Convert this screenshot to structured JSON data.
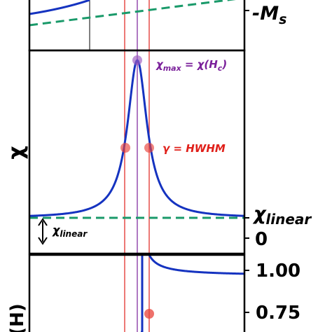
{
  "chart_data": [
    {
      "panel": "top",
      "type": "line",
      "right_label": "-Ms",
      "right_label_parts": {
        "main": "-M",
        "sub": "s"
      },
      "series": [
        {
          "name": "",
          "style": "solid",
          "color": "#1533c0"
        },
        {
          "name": "",
          "style": "dashed",
          "color": "#1a9a6a"
        }
      ]
    },
    {
      "panel": "middle",
      "type": "line",
      "ylabel": "χ",
      "right_ticks": [
        "χlinear",
        "0"
      ],
      "right_tick_parts": {
        "main": "χ",
        "sub": "linear"
      },
      "lorentzian": {
        "x0": 0,
        "gamma": 1,
        "peak": 1.0,
        "baseline": 0.0
      },
      "annotations": [
        {
          "text": "χmax = χ(Hc)",
          "parts": {
            "a": "χ",
            "a_sub": "max",
            "b": " = χ(",
            "c": "H",
            "c_sub": "c",
            "d": ")"
          },
          "color": "#7a1f9a"
        },
        {
          "text": "γ = HWHM",
          "color": "#e0201a"
        },
        {
          "text": "χlinear",
          "parts": {
            "main": "χ",
            "sub": "linear"
          },
          "color": "#000000"
        }
      ],
      "markers": [
        {
          "label": "peak",
          "x": 0,
          "y": 1.0,
          "color": "#9b59c0"
        },
        {
          "label": "hwhm-left",
          "x": -1,
          "y": 0.5,
          "color": "#e8423a"
        },
        {
          "label": "hwhm-right",
          "x": 1,
          "y": 0.5,
          "color": "#e8423a"
        }
      ]
    },
    {
      "panel": "bottom",
      "type": "line",
      "ylabel": "(H)",
      "right_ticks": [
        "1.00",
        "0.75"
      ],
      "markers": [
        {
          "label": "point",
          "y": 0.75,
          "color": "#e8423a"
        }
      ]
    }
  ],
  "colors": {
    "curve": "#1533c0",
    "linear": "#1a9a6a",
    "hc_line": "#7a1f9a",
    "hwhm_line": "#e0201a",
    "marker_red": "#e8423a",
    "marker_purple": "#9b59c0"
  }
}
